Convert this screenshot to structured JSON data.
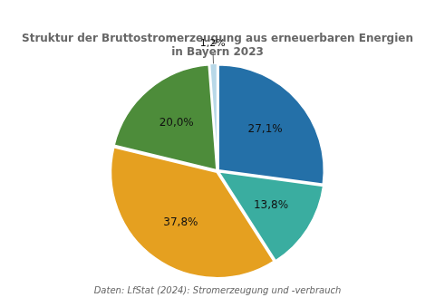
{
  "chart_data": {
    "type": "pie",
    "title": [
      "Struktur der Bruttostromerzeugung aus erneuerbaren Energien",
      "in Bayern 2023"
    ],
    "annotations": [
      "Daten: LfStat (2024): Stromerzeugung und -verbrauch"
    ],
    "values": [
      27.1,
      13.8,
      37.8,
      20.0,
      1.2
    ],
    "value_labels": [
      "27,1%",
      "13,8%",
      "37,8%",
      "20,0%",
      "1,2%"
    ],
    "colors": [
      "#2470a8",
      "#3aada0",
      "#e5a020",
      "#4d8c3a",
      "#b8d8e8"
    ],
    "data_labels": true
  }
}
